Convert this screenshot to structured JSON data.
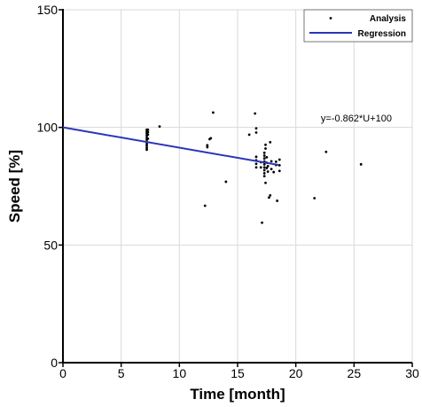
{
  "chart_data": {
    "type": "scatter",
    "xlabel": "Time [month]",
    "ylabel": "Speed [%]",
    "xlim": [
      0,
      30
    ],
    "ylim": [
      0,
      150
    ],
    "x_ticks": [
      0,
      5,
      10,
      15,
      20,
      25,
      30
    ],
    "y_ticks": [
      0,
      50,
      100,
      150
    ],
    "grid": true,
    "legend_position": "top-right",
    "colors": {
      "points": "#000000",
      "regression": "#2b35b8",
      "grid": "#d9d9d9"
    },
    "series": [
      {
        "name": "Analysis",
        "kind": "points",
        "points": [
          [
            7.2,
            99.0
          ],
          [
            7.2,
            98.2
          ],
          [
            7.2,
            97.4
          ],
          [
            7.2,
            96.5
          ],
          [
            7.2,
            95.6
          ],
          [
            7.2,
            94.8
          ],
          [
            7.2,
            93.9
          ],
          [
            7.2,
            93.0
          ],
          [
            7.2,
            92.2
          ],
          [
            7.2,
            91.3
          ],
          [
            7.2,
            90.5
          ],
          [
            7.3,
            99.0
          ],
          [
            7.3,
            98.0
          ],
          [
            7.3,
            96.9
          ],
          [
            7.3,
            95.2
          ],
          [
            8.3,
            100.4
          ],
          [
            12.2,
            66.7
          ],
          [
            12.4,
            92.4
          ],
          [
            12.4,
            91.6
          ],
          [
            12.6,
            95.0
          ],
          [
            12.7,
            95.4
          ],
          [
            12.9,
            106.3
          ],
          [
            14.0,
            76.9
          ],
          [
            16.0,
            96.9
          ],
          [
            16.5,
            105.9
          ],
          [
            16.6,
            99.6
          ],
          [
            16.6,
            97.8
          ],
          [
            16.6,
            87.5
          ],
          [
            16.6,
            86.0
          ],
          [
            16.6,
            84.5
          ],
          [
            16.6,
            83.0
          ],
          [
            17.0,
            85.2
          ],
          [
            17.0,
            83.0
          ],
          [
            17.1,
            59.5
          ],
          [
            17.3,
            89.2
          ],
          [
            17.3,
            88.0
          ],
          [
            17.3,
            86.8
          ],
          [
            17.3,
            85.5
          ],
          [
            17.3,
            84.3
          ],
          [
            17.3,
            83.0
          ],
          [
            17.3,
            81.8
          ],
          [
            17.3,
            80.5
          ],
          [
            17.3,
            79.3
          ],
          [
            17.4,
            92.6
          ],
          [
            17.4,
            91.0
          ],
          [
            17.4,
            76.4
          ],
          [
            17.5,
            87.3
          ],
          [
            17.5,
            85.0
          ],
          [
            17.5,
            82.7
          ],
          [
            17.6,
            83.5
          ],
          [
            17.6,
            81.2
          ],
          [
            17.7,
            70.2
          ],
          [
            17.8,
            93.7
          ],
          [
            17.8,
            71.1
          ],
          [
            17.9,
            85.6
          ],
          [
            17.9,
            82.3
          ],
          [
            18.1,
            81.0
          ],
          [
            18.3,
            85.4
          ],
          [
            18.3,
            84.0
          ],
          [
            18.4,
            68.8
          ],
          [
            18.6,
            86.3
          ],
          [
            18.6,
            83.9
          ],
          [
            18.6,
            81.5
          ],
          [
            21.6,
            69.9
          ],
          [
            22.6,
            89.6
          ],
          [
            25.6,
            84.3
          ]
        ]
      },
      {
        "name": "Regression",
        "kind": "line",
        "x": [
          0,
          18.5
        ],
        "y": [
          100,
          84.05
        ]
      }
    ],
    "annotations": [
      {
        "text": "y=-0.862*U+100",
        "x": 25.2,
        "y": 102.5
      }
    ]
  }
}
